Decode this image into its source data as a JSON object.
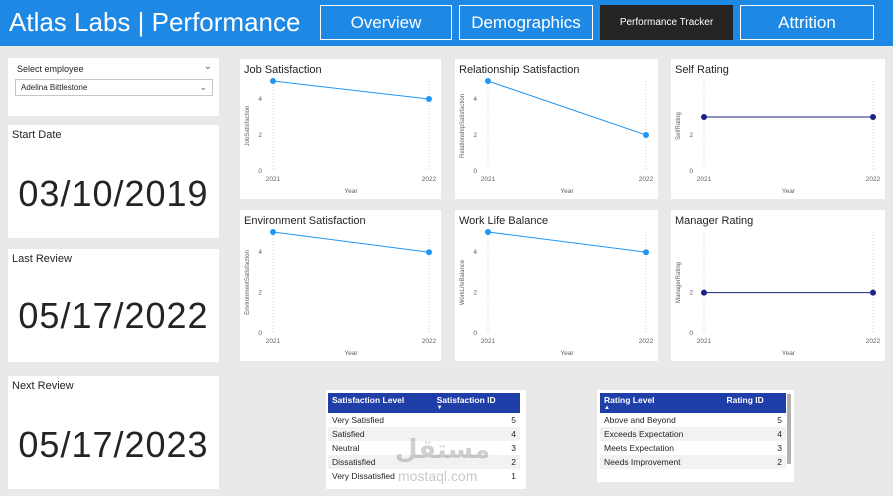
{
  "header": {
    "title": "Atlas Labs | Performance",
    "nav": [
      "Overview",
      "Demographics",
      "Performance Tracker",
      "Attrition"
    ]
  },
  "slicer": {
    "label": "Select employee",
    "value": "Adelina Bittlestone"
  },
  "dates": {
    "start_label": "Start Date",
    "start_value": "03/10/2019",
    "last_label": "Last Review",
    "last_value": "05/17/2022",
    "next_label": "Next Review",
    "next_value": "05/17/2023"
  },
  "chart_data": [
    {
      "type": "line",
      "title": "Job Satisfaction",
      "x": [
        "2021",
        "2022"
      ],
      "values": [
        5,
        4
      ],
      "ylabel": "JobSatisfaction",
      "xlabel": "Year",
      "ylim": [
        0,
        5
      ],
      "yticks": [
        "0",
        "2",
        "4"
      ],
      "color": "#2196f3"
    },
    {
      "type": "line",
      "title": "Relationship Satisfaction",
      "x": [
        "2021",
        "2022"
      ],
      "values": [
        5,
        2
      ],
      "ylabel": "RelationshipSatisfaction",
      "xlabel": "Year",
      "ylim": [
        0,
        5
      ],
      "yticks": [
        "0",
        "2",
        "4"
      ],
      "color": "#2196f3"
    },
    {
      "type": "line",
      "title": "Self Rating",
      "x": [
        "2021",
        "2022"
      ],
      "values": [
        3,
        3
      ],
      "ylabel": "SelfRating",
      "xlabel": "Year",
      "ylim": [
        0,
        5
      ],
      "yticks": [
        "0",
        "2"
      ],
      "color": "#1a237e"
    },
    {
      "type": "line",
      "title": "Environment Satisfaction",
      "x": [
        "2021",
        "2022"
      ],
      "values": [
        5,
        4
      ],
      "ylabel": "EnvironmentSatisfaction",
      "xlabel": "Year",
      "ylim": [
        0,
        5
      ],
      "yticks": [
        "0",
        "2",
        "4"
      ],
      "color": "#2196f3"
    },
    {
      "type": "line",
      "title": "Work Life Balance",
      "x": [
        "2021",
        "2022"
      ],
      "values": [
        5,
        4
      ],
      "ylabel": "WorkLifeBalance",
      "xlabel": "Year",
      "ylim": [
        0,
        5
      ],
      "yticks": [
        "0",
        "2",
        "4"
      ],
      "color": "#2196f3"
    },
    {
      "type": "line",
      "title": "Manager Rating",
      "x": [
        "2021",
        "2022"
      ],
      "values": [
        2,
        2
      ],
      "ylabel": "ManagerRating",
      "xlabel": "Year",
      "ylim": [
        0,
        5
      ],
      "yticks": [
        "0",
        "2"
      ],
      "color": "#1a237e"
    }
  ],
  "satisfaction_table": {
    "headers": [
      "Satisfaction Level",
      "Satisfaction ID"
    ],
    "rows": [
      [
        "Very Satisfied",
        "5"
      ],
      [
        "Satisfied",
        "4"
      ],
      [
        "Neutral",
        "3"
      ],
      [
        "Dissatisfied",
        "2"
      ],
      [
        "Very Dissatisfied",
        "1"
      ]
    ]
  },
  "rating_table": {
    "headers": [
      "Rating Level",
      "Rating ID"
    ],
    "rows": [
      [
        "Above and Beyond",
        "5"
      ],
      [
        "Exceeds Expectation",
        "4"
      ],
      [
        "Meets Expectation",
        "3"
      ],
      [
        "Needs Improvement",
        "2"
      ]
    ]
  },
  "watermark": {
    "arabic": "مستقل",
    "latin": "mostaql.com"
  }
}
